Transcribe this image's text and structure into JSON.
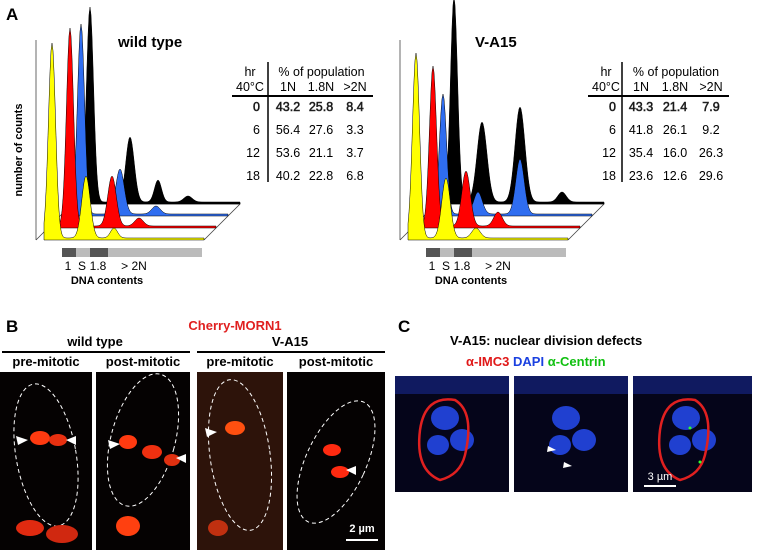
{
  "panel_a": {
    "label": "A",
    "y_axis_label": "number of counts",
    "x_axis_label": "DNA contents",
    "axis_labels": [
      "1",
      "S",
      "1.8",
      "> 2N"
    ],
    "charts": [
      {
        "title": "wild type",
        "header_hr": "hr",
        "header_temp": "40°C",
        "header_pop": "% of population",
        "columns": [
          "1N",
          "1.8N",
          ">2N"
        ],
        "rows": [
          {
            "hr": "0",
            "values": [
              "43.2",
              "25.8",
              "8.4"
            ]
          },
          {
            "hr": "6",
            "values": [
              "56.4",
              "27.6",
              "3.3"
            ]
          },
          {
            "hr": "12",
            "values": [
              "53.6",
              "21.1",
              "3.7"
            ]
          },
          {
            "hr": "18",
            "values": [
              "40.2",
              "22.8",
              "6.8"
            ]
          }
        ]
      },
      {
        "title": "V-A15",
        "header_hr": "hr",
        "header_temp": "40°C",
        "header_pop": "% of population",
        "columns": [
          "1N",
          "1.8N",
          ">2N"
        ],
        "rows": [
          {
            "hr": "0",
            "values": [
              "43.3",
              "21.4",
              "7.9"
            ]
          },
          {
            "hr": "6",
            "values": [
              "41.8",
              "26.1",
              "9.2"
            ]
          },
          {
            "hr": "12",
            "values": [
              "35.4",
              "16.0",
              "26.3"
            ]
          },
          {
            "hr": "18",
            "values": [
              "23.6",
              "12.6",
              "29.6"
            ]
          }
        ]
      }
    ]
  },
  "panel_b": {
    "label": "B",
    "marker": "Cherry-MORN1",
    "groups": [
      {
        "title": "wild type",
        "columns": [
          "pre-mitotic",
          "post-mitotic"
        ]
      },
      {
        "title": "V-A15",
        "columns": [
          "pre-mitotic",
          "post-mitotic"
        ]
      }
    ],
    "scale_bar": "2 µm"
  },
  "panel_c": {
    "label": "C",
    "title": "V-A15: nuclear division defects",
    "stain_labels": [
      "α-IMC3",
      "DAPI",
      "α-Centrin"
    ],
    "scale_bar": "3 µm"
  }
}
